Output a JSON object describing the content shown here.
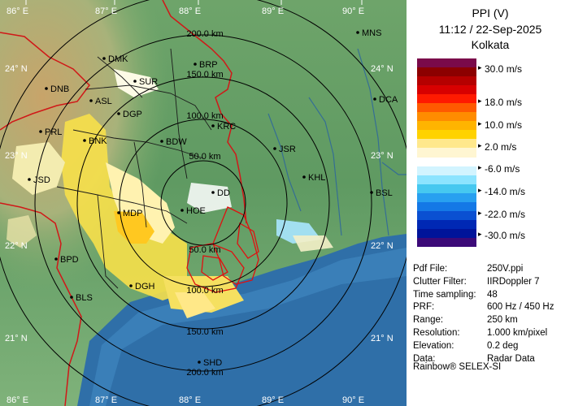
{
  "header": {
    "product": "PPI (V)",
    "datetime": "11:12 / 22-Sep-2025",
    "station": "Kolkata"
  },
  "legend": {
    "colors": [
      "#7a0a4a",
      "#8c0000",
      "#b50000",
      "#d80000",
      "#ff1a00",
      "#ff5a00",
      "#ff8c00",
      "#ffb400",
      "#ffd200",
      "#ffe88c",
      "#fff6d2",
      "#ffffff",
      "#d2f4ff",
      "#8ce4ff",
      "#46c8f0",
      "#28a0f0",
      "#1478e6",
      "#0a50d2",
      "#0028b4",
      "#00149a",
      "#3c0a78"
    ],
    "labels": [
      "30.0 m/s",
      "18.0 m/s",
      "10.0 m/s",
      "2.0 m/s",
      "-6.0 m/s",
      "-14.0 m/s",
      "-22.0 m/s",
      "-30.0 m/s"
    ]
  },
  "meta": [
    {
      "key": "Pdf File:",
      "value": "250V.ppi"
    },
    {
      "key": "Clutter Filter:",
      "value": "IIRDoppler 7"
    },
    {
      "key": "Time sampling:",
      "value": "48"
    },
    {
      "key": "PRF:",
      "value": "600 Hz / 450 Hz"
    },
    {
      "key": "Range:",
      "value": "250 km"
    },
    {
      "key": "Resolution:",
      "value": "1.000 km/pixel"
    },
    {
      "key": "Elevation:",
      "value": "0.2 deg"
    },
    {
      "key": "Data:",
      "value": "Radar Data"
    }
  ],
  "credit": "Rainbow® SELEX-SI",
  "map": {
    "lon_labels": [
      "86° E",
      "87° E",
      "88° E",
      "89° E",
      "90° E"
    ],
    "lat_labels": [
      "24° N",
      "23° N",
      "22° N",
      "21° N"
    ],
    "range_labels": [
      "50.0 km",
      "100.0 km",
      "150.0 km",
      "200.0 km"
    ],
    "range_labels_south": [
      "50.0 km",
      "100.0 km",
      "150.0 km",
      "200.0 km"
    ],
    "cities": [
      "MNS",
      "DMK",
      "BRP",
      "DNB",
      "SUR",
      "DCA",
      "ASL",
      "DGP",
      "KRC",
      "PRL",
      "BNK",
      "BDW",
      "JSR",
      "KHL",
      "JSD",
      "DD",
      "BSL",
      "MDP",
      "HOE",
      "BPD",
      "DGH",
      "BLS",
      "SHD"
    ]
  }
}
